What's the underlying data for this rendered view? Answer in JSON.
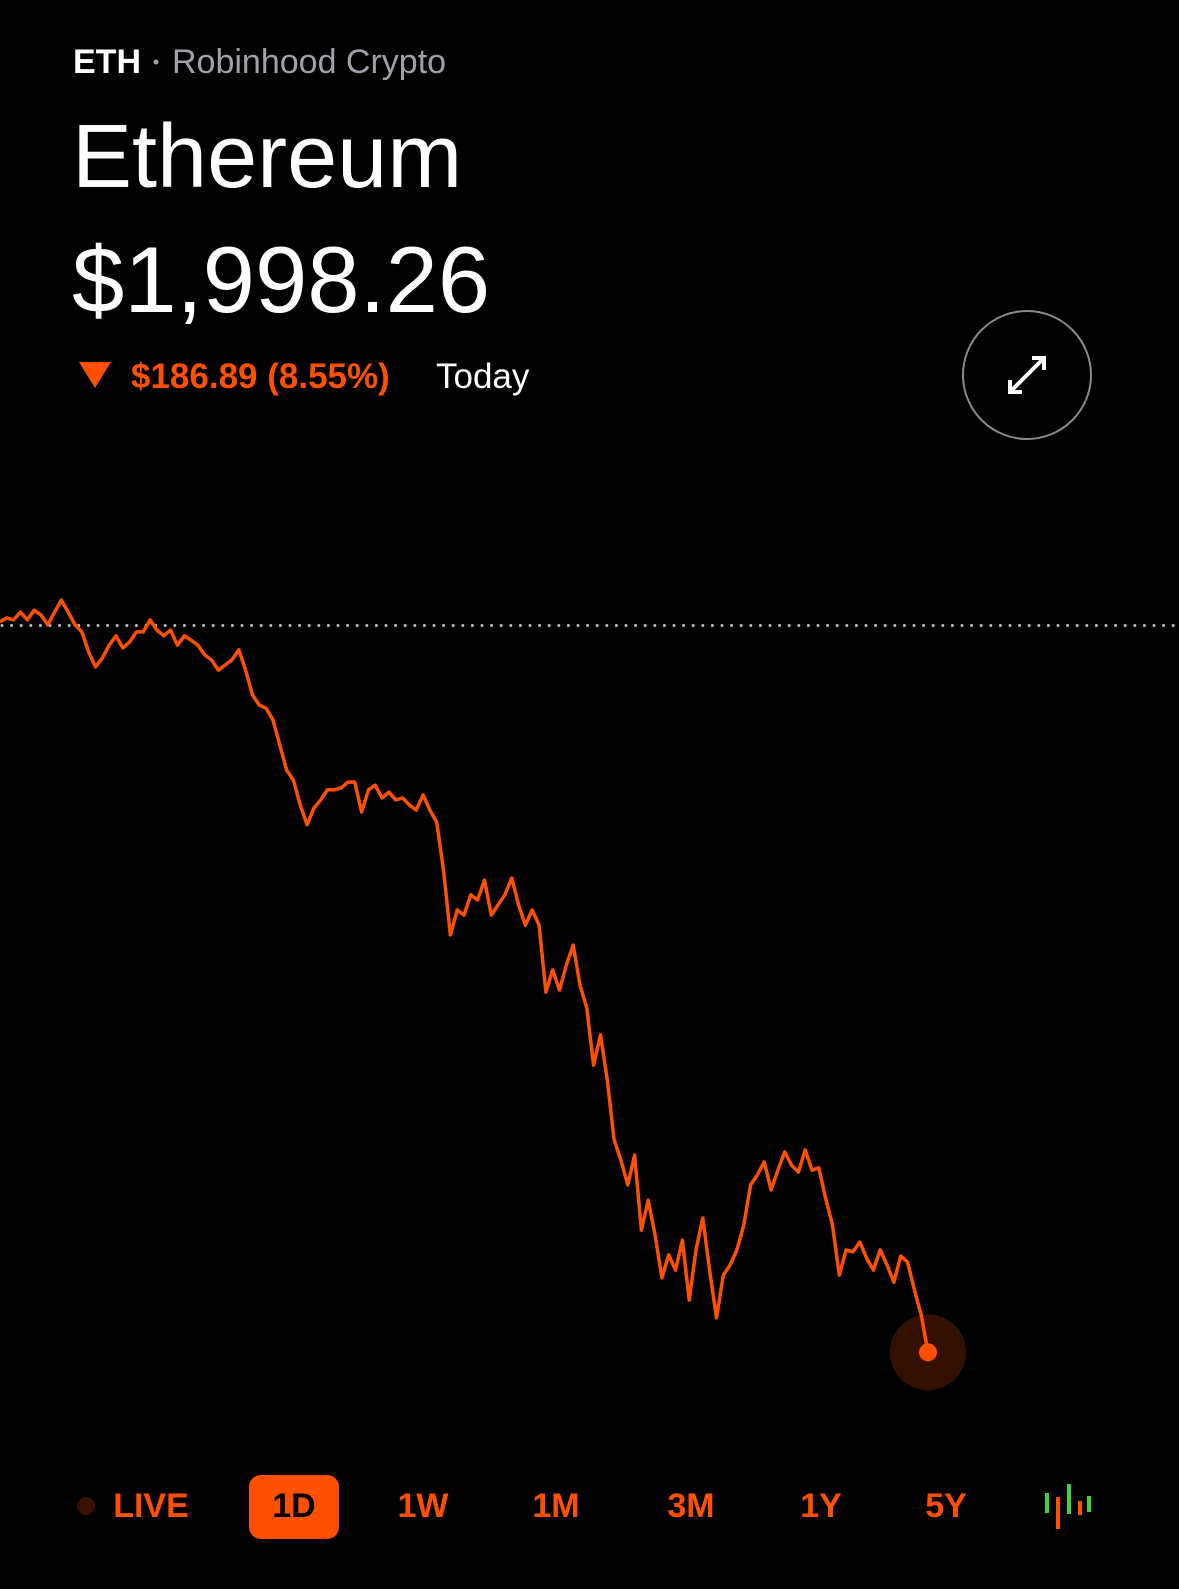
{
  "header": {
    "ticker": "ETH",
    "source": "Robinhood Crypto",
    "name": "Ethereum",
    "price": "$1,998.26",
    "change": "$186.89 (8.55%)",
    "period": "Today"
  },
  "ranges": [
    "LIVE",
    "1D",
    "1W",
    "1M",
    "3M",
    "1Y",
    "5Y"
  ],
  "chart_data": {
    "type": "line",
    "color": "#ff5000",
    "ylim": [
      1986,
      2202
    ],
    "reference_value": 2185.15,
    "values": [
      2186.1,
      2187.1,
      2186.6,
      2188.6,
      2186.6,
      2189.1,
      2187.9,
      2185.3,
      2188.6,
      2191.7,
      2188.6,
      2185.3,
      2183.5,
      2178.3,
      2174.5,
      2176.8,
      2180.1,
      2182.5,
      2179.4,
      2180.9,
      2183.5,
      2183.5,
      2186.6,
      2184.0,
      2182.5,
      2184.0,
      2180.1,
      2182.5,
      2181.4,
      2180.1,
      2177.6,
      2176.3,
      2173.7,
      2175.0,
      2176.3,
      2178.9,
      2173.7,
      2167.3,
      2164.7,
      2163.9,
      2160.9,
      2154.4,
      2148.0,
      2145.4,
      2139.0,
      2133.9,
      2138.2,
      2140.3,
      2142.9,
      2142.9,
      2143.4,
      2144.9,
      2144.9,
      2137.2,
      2142.9,
      2144.1,
      2140.8,
      2142.3,
      2140.3,
      2140.8,
      2139.0,
      2137.7,
      2141.6,
      2137.7,
      2134.6,
      2122.3,
      2105.6,
      2112.0,
      2110.7,
      2115.9,
      2114.6,
      2119.7,
      2110.7,
      2113.3,
      2115.9,
      2120.2,
      2113.3,
      2108.1,
      2112.0,
      2108.1,
      2090.9,
      2096.6,
      2091.4,
      2097.9,
      2103.0,
      2092.7,
      2086.8,
      2072.1,
      2079.9,
      2068.3,
      2052.9,
      2047.7,
      2041.3,
      2049.0,
      2029.7,
      2037.4,
      2028.4,
      2017.4,
      2023.3,
      2019.4,
      2027.1,
      2011.7,
      2024.6,
      2032.8,
      2019.4,
      2007.1,
      2018.1,
      2020.7,
      2024.6,
      2031.0,
      2041.3,
      2043.9,
      2047.2,
      2040.0,
      2045.1,
      2049.8,
      2046.4,
      2044.6,
      2050.3,
      2045.1,
      2045.7,
      2037.9,
      2031.0,
      2018.1,
      2024.6,
      2024.1,
      2026.6,
      2022.5,
      2019.4,
      2024.6,
      2020.7,
      2016.3,
      2023.0,
      2021.5,
      2014.3,
      2007.9,
      1998.26
    ]
  }
}
